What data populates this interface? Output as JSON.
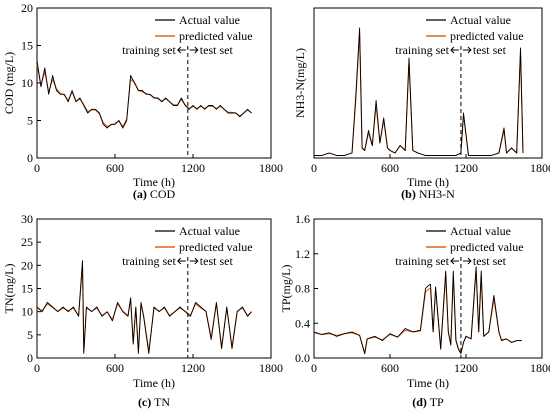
{
  "figure": {
    "legend_actual": "Actual value",
    "legend_predicted": "predicted value",
    "split_training": "training set",
    "split_test": "test set",
    "colors": {
      "actual": "#000000",
      "predicted": "#e0651a",
      "axis": "#000000"
    }
  },
  "chart_data": [
    {
      "type": "line",
      "title": "",
      "caption_letter": "(a)",
      "caption_text": "COD",
      "xlabel": "Time (h)",
      "ylabel": "COD (mg/L)",
      "xlim": [
        0,
        1800
      ],
      "ylim": [
        0,
        20
      ],
      "xticks": [
        "0",
        "600",
        "1200",
        "1800"
      ],
      "yticks": [
        "0",
        "5",
        "10",
        "15",
        "20"
      ],
      "split_x": 1160,
      "x": [
        0,
        30,
        60,
        90,
        120,
        150,
        180,
        210,
        240,
        270,
        300,
        330,
        360,
        390,
        420,
        450,
        480,
        510,
        540,
        570,
        600,
        630,
        660,
        690,
        720,
        750,
        780,
        810,
        840,
        870,
        900,
        930,
        960,
        990,
        1020,
        1050,
        1080,
        1110,
        1140,
        1170,
        1200,
        1230,
        1260,
        1290,
        1320,
        1350,
        1380,
        1410,
        1440,
        1470,
        1500,
        1530,
        1560,
        1590,
        1620,
        1650
      ],
      "series": [
        {
          "name": "Actual value",
          "values": [
            13,
            9.5,
            12,
            8.5,
            11,
            9,
            8.5,
            8.5,
            7.5,
            9,
            7.5,
            8,
            7,
            6,
            6.5,
            6.5,
            6,
            4.5,
            4,
            4.5,
            4.5,
            5,
            4,
            5,
            11,
            10,
            9,
            9,
            8.5,
            8.5,
            8,
            8,
            7.5,
            8,
            7.5,
            7,
            7,
            8,
            7,
            6.5,
            7,
            6.5,
            7,
            6.5,
            7,
            7,
            6.5,
            7,
            6.5,
            6,
            6,
            6,
            5.5,
            6,
            6.5,
            6
          ]
        },
        {
          "name": "predicted value",
          "values": [
            12.5,
            9.8,
            11.5,
            8.8,
            10.5,
            9.2,
            8.6,
            8.4,
            7.7,
            8.8,
            7.6,
            7.9,
            7.1,
            6.2,
            6.4,
            6.4,
            5.9,
            4.7,
            4.2,
            4.4,
            4.6,
            4.9,
            4.2,
            5.2,
            10.5,
            10.1,
            9,
            8.8,
            8.6,
            8.4,
            8.1,
            7.9,
            7.6,
            7.9,
            7.5,
            7.1,
            7.1,
            7.8,
            7.1,
            6.6,
            6.9,
            6.6,
            6.9,
            6.6,
            6.9,
            6.9,
            6.6,
            6.9,
            6.5,
            6.1,
            6.1,
            6,
            5.6,
            6,
            6.4,
            6
          ]
        }
      ],
      "legend": "top-right"
    },
    {
      "type": "line",
      "title": "",
      "caption_letter": "(b)",
      "caption_text": "NH3-N",
      "xlabel": "Time (h)",
      "ylabel": "NH3-N(mg/L)",
      "xlim": [
        0,
        1800
      ],
      "ylim": [
        0,
        6
      ],
      "xticks": [
        "0",
        "600",
        "1200",
        "1800"
      ],
      "yticks": [],
      "split_x": 1160,
      "x": [
        0,
        60,
        120,
        180,
        240,
        300,
        330,
        360,
        380,
        400,
        430,
        460,
        490,
        520,
        550,
        580,
        600,
        640,
        680,
        720,
        750,
        780,
        820,
        880,
        940,
        1000,
        1060,
        1120,
        1160,
        1180,
        1220,
        1280,
        1340,
        1400,
        1460,
        1500,
        1520,
        1560,
        1600,
        1630,
        1650
      ],
      "series": [
        {
          "name": "Actual value",
          "values": [
            0.1,
            0.1,
            0.2,
            0.1,
            0.1,
            0.2,
            2.5,
            5.2,
            0.4,
            0.3,
            1.1,
            0.5,
            2.3,
            0.6,
            1.6,
            0.4,
            0.3,
            0.2,
            0.5,
            0.3,
            4.0,
            0.3,
            0.2,
            0.1,
            0.1,
            0.1,
            0.1,
            0.1,
            0.2,
            1.8,
            0.1,
            0.1,
            0.1,
            0.1,
            0.2,
            1.2,
            0.2,
            0.4,
            0.2,
            4.4,
            0.2
          ]
        },
        {
          "name": "predicted value",
          "values": [
            0.1,
            0.1,
            0.2,
            0.1,
            0.1,
            0.2,
            2.3,
            5.0,
            0.4,
            0.3,
            1.0,
            0.5,
            2.1,
            0.6,
            1.5,
            0.4,
            0.3,
            0.2,
            0.5,
            0.3,
            3.8,
            0.3,
            0.2,
            0.1,
            0.1,
            0.1,
            0.1,
            0.1,
            0.2,
            1.7,
            0.1,
            0.1,
            0.1,
            0.1,
            0.2,
            1.1,
            0.2,
            0.4,
            0.2,
            4.2,
            0.2
          ]
        }
      ],
      "legend": "top-right"
    },
    {
      "type": "line",
      "title": "",
      "caption_letter": "(c)",
      "caption_text": "TN",
      "xlabel": "Time (h)",
      "ylabel": "TN(mg/L)",
      "xlim": [
        0,
        1800
      ],
      "ylim": [
        0,
        30
      ],
      "xticks": [
        "0",
        "600",
        "1200",
        "1800"
      ],
      "yticks": [
        "0",
        "5",
        "10",
        "15",
        "20",
        "25",
        "30"
      ],
      "split_x": 1160,
      "x": [
        0,
        40,
        80,
        120,
        160,
        200,
        240,
        280,
        320,
        350,
        360,
        380,
        420,
        460,
        500,
        540,
        580,
        620,
        660,
        700,
        720,
        740,
        760,
        780,
        800,
        820,
        860,
        900,
        940,
        980,
        1020,
        1060,
        1100,
        1140,
        1180,
        1220,
        1260,
        1300,
        1340,
        1380,
        1420,
        1460,
        1500,
        1540,
        1580,
        1620,
        1650
      ],
      "series": [
        {
          "name": "Actual value",
          "values": [
            11,
            10,
            12,
            11,
            10,
            11,
            10,
            11,
            9,
            21,
            1,
            11,
            10,
            11,
            9,
            10,
            8,
            12,
            10,
            9,
            13,
            3,
            11,
            1,
            12,
            9,
            1,
            11,
            10,
            11,
            9,
            10,
            11,
            10,
            9,
            12,
            11,
            10,
            4,
            12,
            2,
            11,
            2,
            10,
            11,
            9,
            10
          ]
        },
        {
          "name": "predicted value",
          "values": [
            10.8,
            10.2,
            11.7,
            10.9,
            10.1,
            10.8,
            10.2,
            10.8,
            9.2,
            20.2,
            1.5,
            10.8,
            10.1,
            10.8,
            9.2,
            9.9,
            8.3,
            11.7,
            10.1,
            9.2,
            12.6,
            3.5,
            10.8,
            1.6,
            11.6,
            9.2,
            1.5,
            10.8,
            10.1,
            10.8,
            9.2,
            10,
            10.8,
            10.1,
            9.2,
            11.7,
            10.8,
            10.1,
            4.4,
            11.7,
            2.4,
            10.8,
            2.4,
            10.1,
            10.8,
            9.2,
            10
          ]
        }
      ],
      "legend": "top-right"
    },
    {
      "type": "line",
      "title": "",
      "caption_letter": "(d)",
      "caption_text": "TP",
      "xlabel": "Time (h)",
      "ylabel": "TP(mg/L)",
      "xlim": [
        0,
        1800
      ],
      "ylim": [
        0,
        1.6
      ],
      "xticks": [
        "0",
        "600",
        "1200",
        "1800"
      ],
      "yticks": [
        "0.0",
        "0.4",
        "0.8",
        "1.2",
        "1.6"
      ],
      "split_x": 1160,
      "x": [
        0,
        60,
        120,
        180,
        240,
        300,
        360,
        400,
        420,
        480,
        540,
        600,
        660,
        720,
        780,
        840,
        880,
        900,
        920,
        940,
        960,
        1000,
        1040,
        1060,
        1080,
        1100,
        1120,
        1140,
        1160,
        1180,
        1200,
        1240,
        1280,
        1300,
        1320,
        1340,
        1380,
        1420,
        1460,
        1480,
        1520,
        1560,
        1600,
        1640
      ],
      "series": [
        {
          "name": "Actual value",
          "values": [
            0.3,
            0.27,
            0.29,
            0.25,
            0.28,
            0.3,
            0.26,
            0.05,
            0.22,
            0.25,
            0.2,
            0.28,
            0.24,
            0.34,
            0.3,
            0.32,
            0.8,
            0.83,
            0.85,
            0.3,
            0.82,
            0.1,
            1.0,
            0.3,
            0.15,
            1.0,
            0.2,
            0.1,
            0.05,
            0.18,
            0.25,
            0.22,
            1.05,
            0.3,
            1.0,
            0.25,
            0.3,
            0.72,
            0.3,
            0.2,
            0.22,
            0.18,
            0.2,
            0.2
          ]
        },
        {
          "name": "predicted value",
          "values": [
            0.29,
            0.27,
            0.28,
            0.26,
            0.28,
            0.29,
            0.26,
            0.06,
            0.22,
            0.24,
            0.21,
            0.27,
            0.24,
            0.32,
            0.3,
            0.31,
            0.76,
            0.79,
            0.8,
            0.3,
            0.78,
            0.12,
            0.95,
            0.3,
            0.16,
            0.95,
            0.21,
            0.11,
            0.06,
            0.18,
            0.25,
            0.22,
            1.0,
            0.3,
            0.95,
            0.25,
            0.3,
            0.68,
            0.3,
            0.21,
            0.22,
            0.18,
            0.2,
            0.2
          ]
        }
      ],
      "legend": "top-right"
    }
  ]
}
